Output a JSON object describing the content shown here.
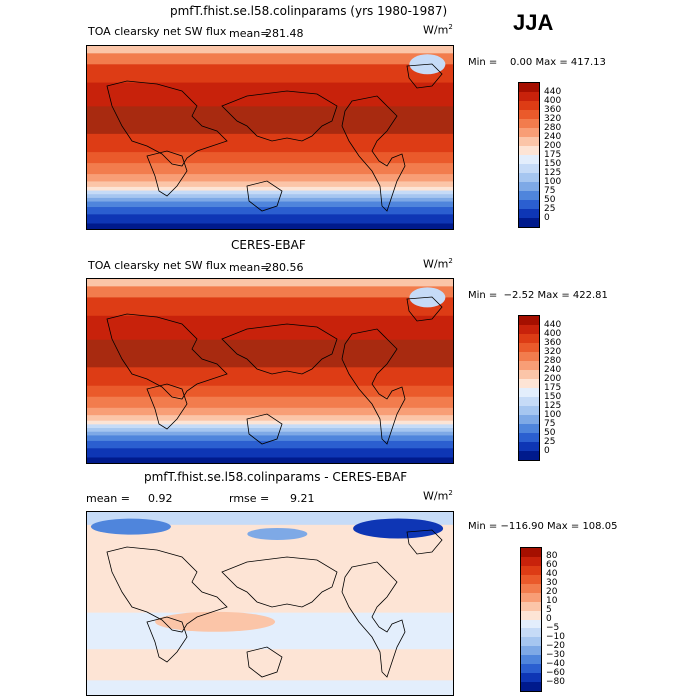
{
  "season": "JJA",
  "panels": [
    {
      "title": "pmfT.fhist.se.l58.colinparams (yrs 1980-1987)",
      "variable": "TOA clearsky net SW flux",
      "stat1_label": "mean=",
      "stat1_value": "281.48",
      "units": "W/m",
      "units_exp": "2",
      "min_max": "Min =    0.00 Max = 417.13",
      "colorbar": {
        "ticks": [
          "440",
          "400",
          "360",
          "320",
          "280",
          "240",
          "200",
          "175",
          "150",
          "125",
          "100",
          "75",
          "50",
          "25",
          "0"
        ],
        "colors": [
          "#a50f00",
          "#c8220b",
          "#dd3c15",
          "#ea5a2b",
          "#f27c4d",
          "#f89e76",
          "#fbc5a8",
          "#fde4d5",
          "#e3eefc",
          "#c6dbf7",
          "#a6c6f0",
          "#7ea9e6",
          "#4f85dc",
          "#2b5fd0",
          "#0e36b5",
          "#001a8c"
        ]
      },
      "map_kind": "flux"
    },
    {
      "title": "CERES-EBAF",
      "variable": "TOA clearsky net SW flux",
      "stat1_label": "mean=",
      "stat1_value": "280.56",
      "units": "W/m",
      "units_exp": "2",
      "min_max": "Min =  −2.52 Max = 422.81",
      "colorbar": {
        "ticks": [
          "440",
          "400",
          "360",
          "320",
          "280",
          "240",
          "200",
          "175",
          "150",
          "125",
          "100",
          "75",
          "50",
          "25",
          "0"
        ],
        "colors": [
          "#a50f00",
          "#c8220b",
          "#dd3c15",
          "#ea5a2b",
          "#f27c4d",
          "#f89e76",
          "#fbc5a8",
          "#fde4d5",
          "#e3eefc",
          "#c6dbf7",
          "#a6c6f0",
          "#7ea9e6",
          "#4f85dc",
          "#2b5fd0",
          "#0e36b5",
          "#001a8c"
        ]
      },
      "map_kind": "flux"
    },
    {
      "title": "pmfT.fhist.se.l58.colinparams - CERES-EBAF",
      "stat1_label": "mean =",
      "stat1_value": "0.92",
      "stat2_label": "rmse =",
      "stat2_value": "9.21",
      "units": "W/m",
      "units_exp": "2",
      "min_max": "Min = −116.90 Max = 108.05",
      "colorbar": {
        "ticks": [
          "80",
          "60",
          "40",
          "30",
          "20",
          "10",
          "5",
          "0",
          "−5",
          "−10",
          "−20",
          "−30",
          "−40",
          "−60",
          "−80"
        ],
        "colors": [
          "#a50f00",
          "#c8220b",
          "#dd3c15",
          "#ea5a2b",
          "#f27c4d",
          "#f89e76",
          "#fbc5a8",
          "#fde4d5",
          "#e3eefc",
          "#c6dbf7",
          "#a6c6f0",
          "#7ea9e6",
          "#4f85dc",
          "#2b5fd0",
          "#0e36b5",
          "#001a8c"
        ]
      },
      "map_kind": "diff"
    }
  ],
  "chart_data": [
    {
      "type": "heatmap",
      "title": "pmfT.fhist.se.l58.colinparams (yrs 1980-1987)",
      "subtitle": "TOA clearsky net SW flux",
      "units": "W/m^2",
      "mean": 281.48,
      "min": 0.0,
      "max": 417.13,
      "levels": [
        0,
        25,
        50,
        75,
        100,
        125,
        150,
        175,
        200,
        240,
        280,
        320,
        360,
        400,
        440
      ]
    },
    {
      "type": "heatmap",
      "title": "CERES-EBAF",
      "subtitle": "TOA clearsky net SW flux",
      "units": "W/m^2",
      "mean": 280.56,
      "min": -2.52,
      "max": 422.81,
      "levels": [
        0,
        25,
        50,
        75,
        100,
        125,
        150,
        175,
        200,
        240,
        280,
        320,
        360,
        400,
        440
      ]
    },
    {
      "type": "heatmap",
      "title": "pmfT.fhist.se.l58.colinparams - CERES-EBAF",
      "units": "W/m^2",
      "mean": 0.92,
      "rmse": 9.21,
      "min": -116.9,
      "max": 108.05,
      "levels": [
        -80,
        -60,
        -40,
        -30,
        -20,
        -10,
        -5,
        0,
        5,
        10,
        20,
        30,
        40,
        60,
        80
      ]
    }
  ]
}
